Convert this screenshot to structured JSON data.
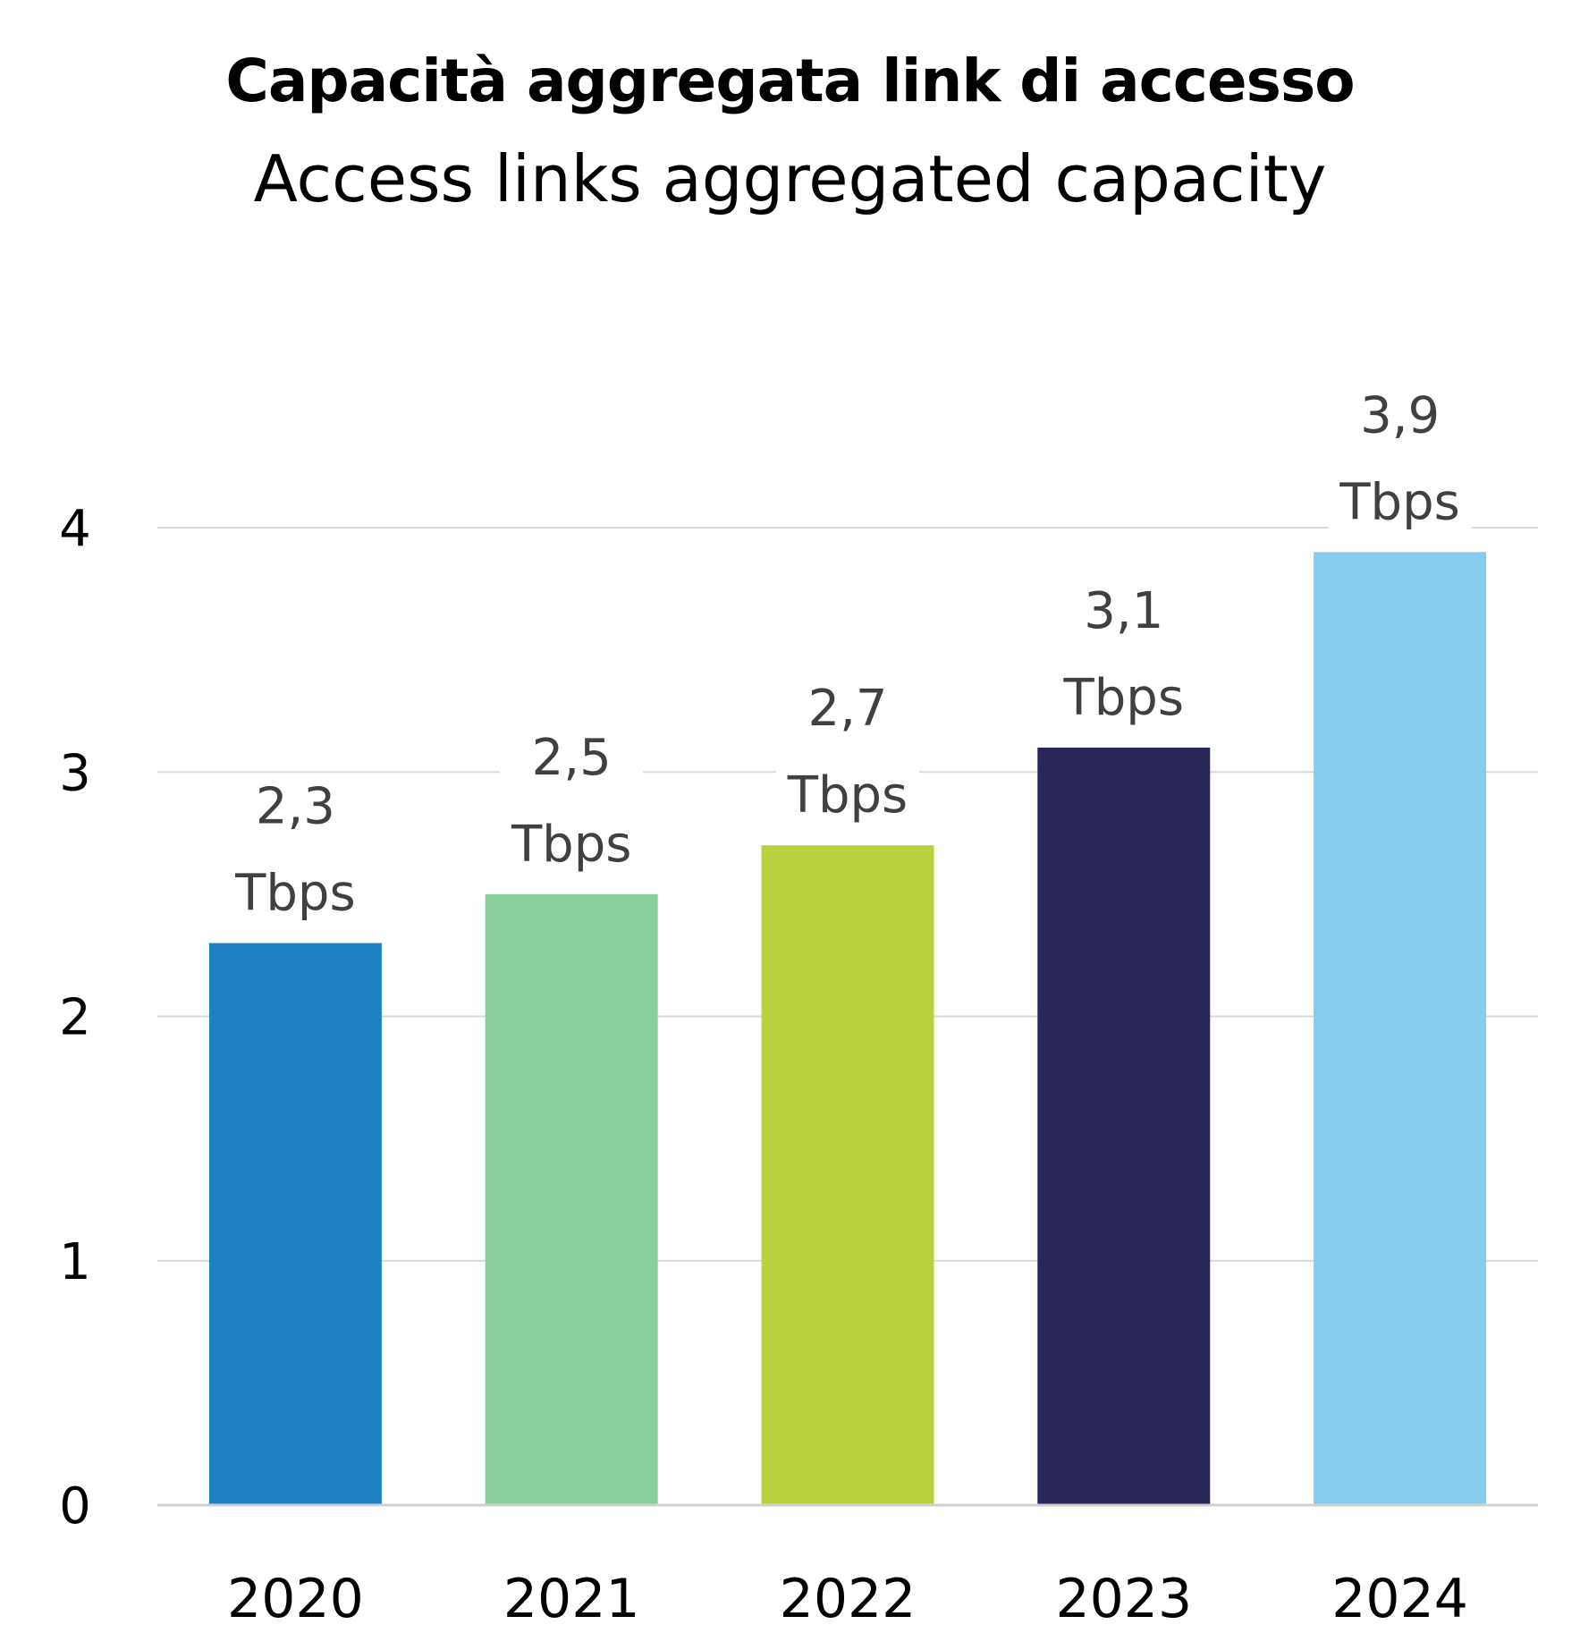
{
  "chart_data": {
    "type": "bar",
    "title": "Capacità aggregata link di accesso",
    "subtitle": "Access links aggregated capacity",
    "categories": [
      "2020",
      "2021",
      "2022",
      "2023",
      "2024"
    ],
    "values": [
      2.3,
      2.5,
      2.7,
      3.1,
      3.9
    ],
    "data_labels": [
      [
        "2,3",
        "Tbps"
      ],
      [
        "2,5",
        "Tbps"
      ],
      [
        "2,7",
        "Tbps"
      ],
      [
        "3,1",
        "Tbps"
      ],
      [
        "3,9",
        "Tbps"
      ]
    ],
    "bar_colors": [
      "#1f7fc3",
      "#8ad09c",
      "#bbd13d",
      "#292659",
      "#85ccef"
    ],
    "yticks": [
      "0",
      "1",
      "2",
      "3",
      "4"
    ],
    "ylim": [
      0,
      4
    ],
    "grid": true,
    "legend": "none",
    "xlabel": "",
    "ylabel": "",
    "colors": {
      "gridline": "#d9d9d9",
      "axis_text": "#000000",
      "data_label_text": "#404040"
    }
  }
}
